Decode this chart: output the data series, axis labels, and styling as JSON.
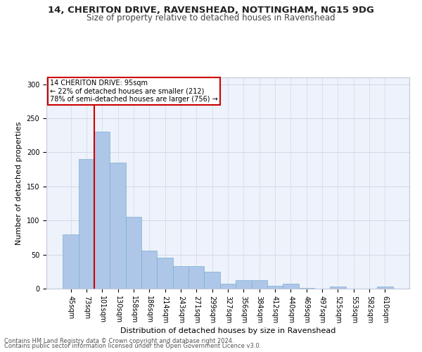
{
  "title": "14, CHERITON DRIVE, RAVENSHEAD, NOTTINGHAM, NG15 9DG",
  "subtitle": "Size of property relative to detached houses in Ravenshead",
  "xlabel": "Distribution of detached houses by size in Ravenshead",
  "ylabel": "Number of detached properties",
  "categories": [
    "45sqm",
    "73sqm",
    "101sqm",
    "130sqm",
    "158sqm",
    "186sqm",
    "214sqm",
    "243sqm",
    "271sqm",
    "299sqm",
    "327sqm",
    "356sqm",
    "384sqm",
    "412sqm",
    "440sqm",
    "469sqm",
    "497sqm",
    "525sqm",
    "553sqm",
    "582sqm",
    "610sqm"
  ],
  "values": [
    80,
    190,
    230,
    185,
    105,
    56,
    45,
    33,
    33,
    25,
    7,
    12,
    12,
    4,
    7,
    1,
    0,
    3,
    0,
    0,
    3
  ],
  "bar_color": "#aec6e8",
  "bar_edge_color": "#7ab0d4",
  "vline_color": "#cc0000",
  "annotation_box_text": "14 CHERITON DRIVE: 95sqm\n← 22% of detached houses are smaller (212)\n78% of semi-detached houses are larger (756) →",
  "annotation_box_color": "#cc0000",
  "ylim": [
    0,
    310
  ],
  "yticks": [
    0,
    50,
    100,
    150,
    200,
    250,
    300
  ],
  "grid_color": "#d0d8e8",
  "background_color": "#eef2fa",
  "footer_line1": "Contains HM Land Registry data © Crown copyright and database right 2024.",
  "footer_line2": "Contains public sector information licensed under the Open Government Licence v3.0.",
  "title_fontsize": 9.5,
  "subtitle_fontsize": 8.5,
  "xlabel_fontsize": 8,
  "ylabel_fontsize": 8,
  "tick_fontsize": 7,
  "annotation_fontsize": 7,
  "footer_fontsize": 6
}
